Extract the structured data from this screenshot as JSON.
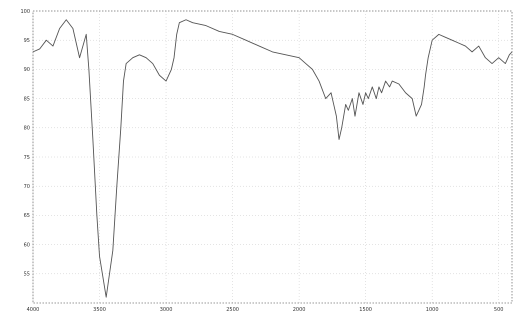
{
  "chart_data": {
    "type": "line",
    "title": "",
    "xlabel": "",
    "ylabel": "",
    "x_reversed": true,
    "xlim": [
      4000,
      400
    ],
    "ylim": [
      50,
      100
    ],
    "grid": true,
    "x_ticks": [
      4000,
      3500,
      3000,
      2500,
      2000,
      1500,
      1000,
      500
    ],
    "x_tick_labels": [
      "4000",
      "3500",
      "3000",
      "2500",
      "2000",
      "1500",
      "1000",
      "500"
    ],
    "y_ticks": [
      55,
      60,
      65,
      70,
      75,
      80,
      85,
      90,
      95,
      100
    ],
    "y_tick_labels": [
      "55",
      "60",
      "65",
      "70",
      "75",
      "80",
      "85",
      "90",
      "95",
      "100"
    ],
    "series": [
      {
        "color": "#555555",
        "x": [
          4000,
          3950,
          3900,
          3850,
          3800,
          3750,
          3700,
          3650,
          3600,
          3580,
          3550,
          3520,
          3500,
          3450,
          3400,
          3370,
          3340,
          3320,
          3300,
          3250,
          3200,
          3150,
          3100,
          3050,
          3000,
          2960,
          2940,
          2920,
          2900,
          2850,
          2800,
          2700,
          2600,
          2500,
          2400,
          2300,
          2200,
          2100,
          2000,
          1950,
          1900,
          1850,
          1800,
          1760,
          1740,
          1720,
          1700,
          1680,
          1650,
          1630,
          1600,
          1580,
          1550,
          1520,
          1500,
          1480,
          1450,
          1420,
          1400,
          1380,
          1350,
          1320,
          1300,
          1250,
          1200,
          1150,
          1120,
          1100,
          1080,
          1060,
          1050,
          1030,
          1000,
          950,
          900,
          850,
          800,
          750,
          700,
          650,
          600,
          550,
          500,
          450,
          420,
          400
        ],
        "y": [
          93.0,
          93.5,
          95.0,
          94.0,
          97.0,
          98.5,
          97.0,
          92.0,
          96.0,
          90.0,
          78.0,
          65.0,
          58.0,
          51.0,
          59.0,
          70.0,
          80.0,
          88.0,
          91.0,
          92.0,
          92.5,
          92.0,
          91.0,
          89.0,
          88.0,
          90.0,
          92.0,
          96.0,
          98.0,
          98.5,
          98.0,
          97.5,
          96.5,
          96.0,
          95.0,
          94.0,
          93.0,
          92.5,
          92.0,
          91.0,
          90.0,
          88.0,
          85.0,
          86.0,
          84.0,
          82.0,
          78.0,
          80.0,
          84.0,
          83.0,
          85.0,
          82.0,
          86.0,
          84.0,
          86.0,
          85.0,
          87.0,
          85.0,
          87.0,
          86.0,
          88.0,
          87.0,
          88.0,
          87.5,
          86.0,
          85.0,
          82.0,
          83.0,
          84.0,
          87.0,
          89.0,
          92.0,
          95.0,
          96.0,
          95.5,
          95.0,
          94.5,
          94.0,
          93.0,
          94.0,
          92.0,
          91.0,
          92.0,
          91.0,
          92.5,
          93.0
        ]
      }
    ]
  }
}
